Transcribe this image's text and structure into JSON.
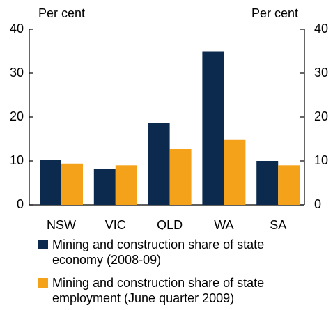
{
  "chart_data": {
    "type": "bar",
    "y_label": "Per cent",
    "y2_label": "Per cent",
    "categories": [
      "NSW",
      "VIC",
      "QLD",
      "WA",
      "SA"
    ],
    "series": [
      {
        "name": "Mining and construction share of state economy (2008-09)",
        "color": "#0b2a4e",
        "values": [
          10.3,
          8.1,
          18.6,
          35,
          10
        ]
      },
      {
        "name": "Mining and construction share of state employment (June quarter 2009)",
        "color": "#f5a21b",
        "values": [
          9.4,
          9.0,
          12.7,
          14.8,
          9.0
        ]
      }
    ],
    "ylim": [
      0,
      40
    ],
    "yticks": [
      0,
      10,
      20,
      30,
      40
    ],
    "y2lim": [
      0,
      40
    ],
    "y2ticks": [
      0,
      10,
      20,
      30,
      40
    ],
    "grid": false,
    "legend": "bottom"
  }
}
